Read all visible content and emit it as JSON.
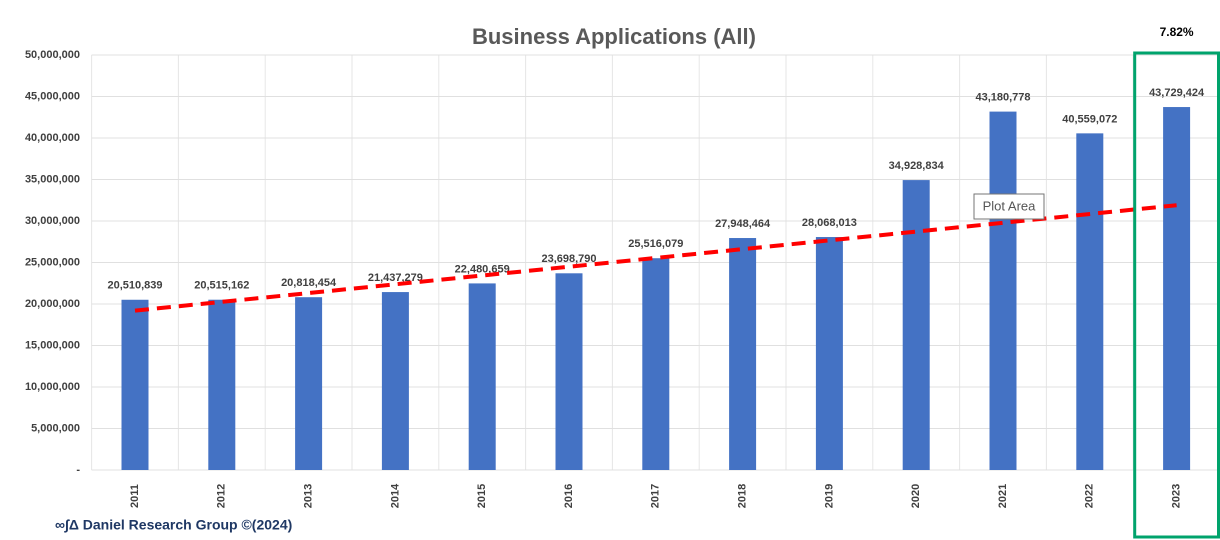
{
  "chart_data": {
    "type": "bar",
    "title": "Business Applications (All)",
    "categories": [
      "2011",
      "2012",
      "2013",
      "2014",
      "2015",
      "2016",
      "2017",
      "2018",
      "2019",
      "2020",
      "2021",
      "2022",
      "2023"
    ],
    "values": [
      20510839,
      20515162,
      20818454,
      21437279,
      22480659,
      23698790,
      25516079,
      27948464,
      28068013,
      34928834,
      43180778,
      40559072,
      43729424
    ],
    "value_labels": [
      "20,510,839",
      "20,515,162",
      "20,818,454",
      "21,437,279",
      "22,480,659",
      "23,698,790",
      "25,516,079",
      "27,948,464",
      "28,068,013",
      "34,928,834",
      "43,180,778",
      "40,559,072",
      "43,729,424"
    ],
    "color": "#4472c4",
    "ylim": [
      0,
      50000000
    ],
    "yticks": [
      {
        "value": 0,
        "label": "-"
      },
      {
        "value": 5000000,
        "label": "5,000,000"
      },
      {
        "value": 10000000,
        "label": "10,000,000"
      },
      {
        "value": 15000000,
        "label": "15,000,000"
      },
      {
        "value": 20000000,
        "label": "20,000,000"
      },
      {
        "value": 25000000,
        "label": "25,000,000"
      },
      {
        "value": 30000000,
        "label": "30,000,000"
      },
      {
        "value": 35000000,
        "label": "35,000,000"
      },
      {
        "value": 40000000,
        "label": "40,000,000"
      },
      {
        "value": 45000000,
        "label": "45,000,000"
      },
      {
        "value": 50000000,
        "label": "50,000,000"
      }
    ],
    "grid": true,
    "trendline": {
      "color": "#ff0000",
      "start": 19200000,
      "end": 31900000
    },
    "highlight": {
      "category_index": 12,
      "label": "7.82%",
      "color": "#00a36c"
    },
    "tooltip": "Plot Area",
    "footer": "∞∫Δ Daniel Research Group ©(2024)"
  }
}
